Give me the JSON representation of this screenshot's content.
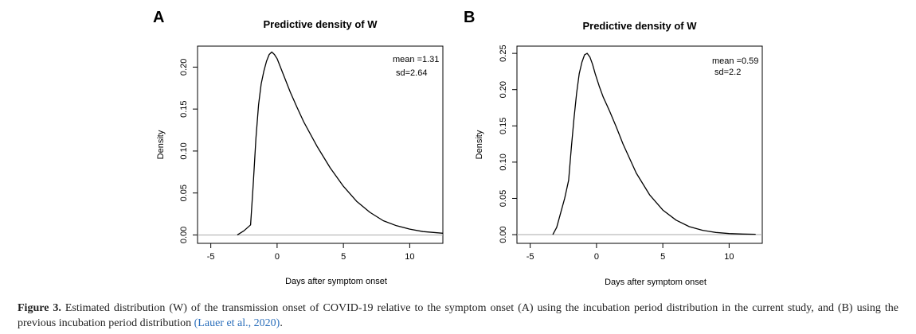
{
  "panels": [
    {
      "letter": "A",
      "title": "Predictive density of W",
      "mean_label": "mean =1.31",
      "sd_label": "sd=2.64",
      "xlabel": "Days after symptom onset",
      "ylabel": "Density",
      "xticks": [
        "-5",
        "0",
        "5",
        "10"
      ],
      "yticks": [
        "0.00",
        "0.05",
        "0.10",
        "0.15",
        "0.20"
      ]
    },
    {
      "letter": "B",
      "title": "Predictive density of W",
      "mean_label": "mean =0.59",
      "sd_label": "sd=2.2",
      "xlabel": "Days after symptom onset",
      "ylabel": "Density",
      "xticks": [
        "-5",
        "0",
        "5",
        "10"
      ],
      "yticks": [
        "0.00",
        "0.05",
        "0.10",
        "0.15",
        "0.20",
        "0.25"
      ]
    }
  ],
  "chart_data": [
    {
      "type": "line",
      "title": "Predictive density of W",
      "xlabel": "Days after symptom onset",
      "ylabel": "Density",
      "xlim": [
        -6,
        12.5
      ],
      "ylim": [
        -0.01,
        0.225
      ],
      "xticks": [
        -5,
        0,
        5,
        10
      ],
      "yticks": [
        0,
        0.05,
        0.1,
        0.15,
        0.2
      ],
      "hline": 0,
      "grid": false,
      "annotations": [
        "mean =1.31",
        "sd=2.64"
      ],
      "x": [
        -3.0,
        -2.5,
        -2.0,
        -1.8,
        -1.6,
        -1.4,
        -1.2,
        -1.0,
        -0.8,
        -0.6,
        -0.4,
        -0.2,
        0.0,
        0.5,
        1.0,
        1.5,
        2.0,
        3.0,
        4.0,
        5.0,
        6.0,
        7.0,
        8.0,
        9.0,
        10.0,
        11.0,
        12.5
      ],
      "y": [
        0.0,
        0.005,
        0.012,
        0.06,
        0.115,
        0.155,
        0.18,
        0.195,
        0.207,
        0.215,
        0.218,
        0.215,
        0.21,
        0.19,
        0.17,
        0.152,
        0.135,
        0.106,
        0.08,
        0.058,
        0.04,
        0.027,
        0.017,
        0.011,
        0.007,
        0.004,
        0.002
      ]
    },
    {
      "type": "line",
      "title": "Predictive density of W",
      "xlabel": "Days after symptom onset",
      "ylabel": "Density",
      "xlim": [
        -6,
        12.5
      ],
      "ylim": [
        -0.012,
        0.26
      ],
      "xticks": [
        -5,
        0,
        5,
        10
      ],
      "yticks": [
        0,
        0.05,
        0.1,
        0.15,
        0.2,
        0.25
      ],
      "hline": 0,
      "grid": false,
      "annotations": [
        "mean =0.59",
        "sd=2.2"
      ],
      "x": [
        -3.3,
        -3.0,
        -2.7,
        -2.4,
        -2.1,
        -1.9,
        -1.7,
        -1.5,
        -1.3,
        -1.1,
        -0.9,
        -0.7,
        -0.5,
        -0.3,
        -0.1,
        0.2,
        0.5,
        1.0,
        1.5,
        2.0,
        3.0,
        4.0,
        5.0,
        6.0,
        7.0,
        8.0,
        9.0,
        10.0,
        11.0,
        12.0
      ],
      "y": [
        0.0,
        0.01,
        0.03,
        0.05,
        0.075,
        0.12,
        0.16,
        0.195,
        0.222,
        0.238,
        0.248,
        0.25,
        0.245,
        0.235,
        0.222,
        0.205,
        0.19,
        0.17,
        0.148,
        0.125,
        0.085,
        0.055,
        0.034,
        0.02,
        0.011,
        0.006,
        0.003,
        0.0015,
        0.0008,
        0.0005
      ]
    }
  ],
  "caption": {
    "label": "Figure 3.",
    "text": " Estimated distribution (W) of the transmission onset of COVID-19 relative to the symptom onset (A) using the incubation period distribution in the current study, and (B) using the previous incubation period distribution ",
    "citation": "(Lauer et al., 2020)",
    "end": "."
  }
}
